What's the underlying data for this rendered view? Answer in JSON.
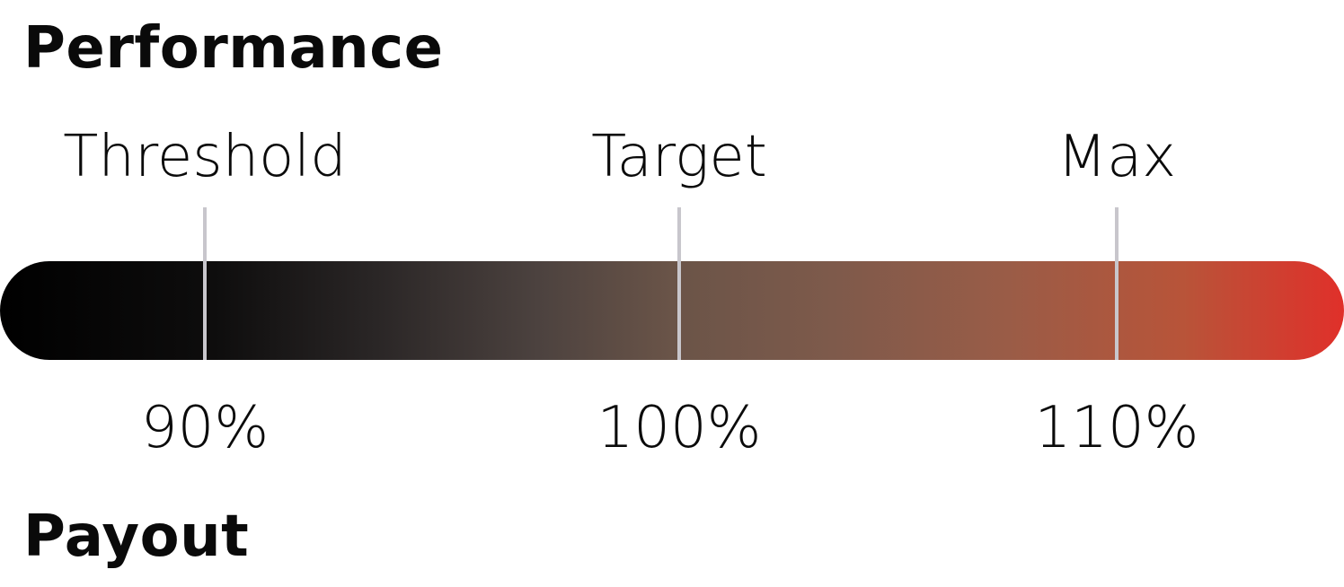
{
  "title": "Performance",
  "footer_heading": "Payout",
  "scale": {
    "range_percent": [
      85.7,
      112.7
    ],
    "colors": {
      "start": "#000000",
      "end": "#e0302a",
      "tick": "#c8c6cc"
    },
    "markers": [
      {
        "label": "Threshold",
        "value_label": "90%",
        "value": 90
      },
      {
        "label": "Target",
        "value_label": "100%",
        "value": 100
      },
      {
        "label": "Max",
        "value_label": "110%",
        "value": 110
      }
    ]
  }
}
